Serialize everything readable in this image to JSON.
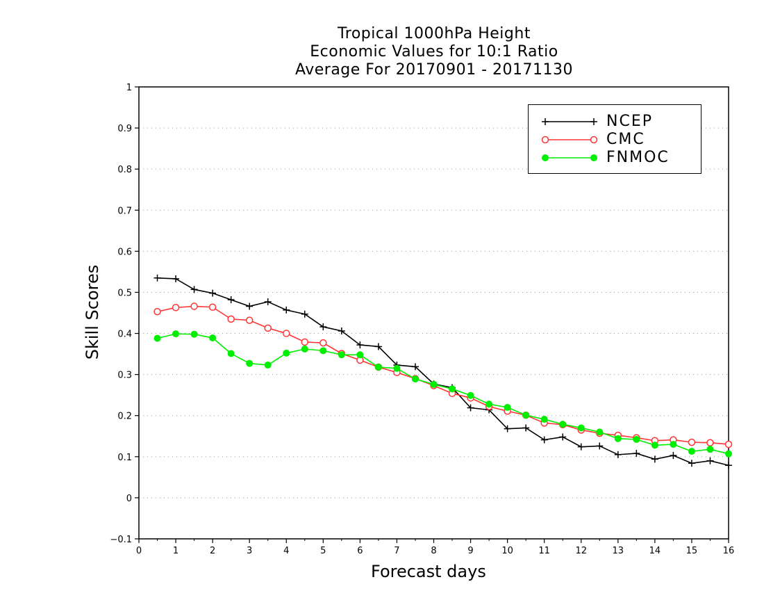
{
  "chart_data": {
    "type": "line",
    "title": [
      "Tropical 1000hPa Height",
      "Economic Values for 10:1 Ratio",
      "Average For 20170901 - 20171130"
    ],
    "xlabel": "Forecast days",
    "ylabel": "Skill Scores",
    "xlim": [
      0,
      16
    ],
    "ylim": [
      -0.1,
      1
    ],
    "xticks": [
      "0",
      "1",
      "2",
      "3",
      "4",
      "5",
      "6",
      "7",
      "8",
      "9",
      "10",
      "11",
      "12",
      "13",
      "14",
      "15",
      "16"
    ],
    "yticks": [
      "-0.1",
      "0",
      "0.1",
      "0.2",
      "0.3",
      "0.4",
      "0.5",
      "0.6",
      "0.7",
      "0.8",
      "0.9",
      "1"
    ],
    "grid": "horizontal dotted",
    "legend_position": "top-right",
    "x": [
      0.5,
      1,
      1.5,
      2,
      2.5,
      3,
      3.5,
      4,
      4.5,
      5,
      5.5,
      6,
      6.5,
      7,
      7.5,
      8,
      8.5,
      9,
      9.5,
      10,
      10.5,
      11,
      11.5,
      12,
      12.5,
      13,
      13.5,
      14,
      14.5,
      15,
      15.5,
      16
    ],
    "series": [
      {
        "name": "NCEP",
        "color": "#000000",
        "marker": "plus",
        "values": [
          0.535,
          0.533,
          0.507,
          0.498,
          0.482,
          0.466,
          0.477,
          0.457,
          0.447,
          0.416,
          0.406,
          0.372,
          0.368,
          0.323,
          0.319,
          0.277,
          0.268,
          0.219,
          0.214,
          0.168,
          0.17,
          0.141,
          0.148,
          0.124,
          0.126,
          0.105,
          0.108,
          0.094,
          0.103,
          0.084,
          0.09,
          0.079
        ]
      },
      {
        "name": "CMC",
        "color": "#ff3333",
        "marker": "open-circle",
        "values": [
          0.453,
          0.463,
          0.466,
          0.464,
          0.435,
          0.432,
          0.413,
          0.4,
          0.379,
          0.377,
          0.351,
          0.335,
          0.318,
          0.305,
          0.29,
          0.273,
          0.254,
          0.243,
          0.222,
          0.211,
          0.201,
          0.182,
          0.178,
          0.165,
          0.157,
          0.152,
          0.146,
          0.139,
          0.141,
          0.135,
          0.134,
          0.13
        ]
      },
      {
        "name": "FNMOC",
        "color": "#00ee00",
        "marker": "filled-circle",
        "values": [
          0.388,
          0.399,
          0.398,
          0.389,
          0.351,
          0.327,
          0.323,
          0.352,
          0.362,
          0.358,
          0.348,
          0.348,
          0.318,
          0.315,
          0.289,
          0.276,
          0.265,
          0.249,
          0.228,
          0.22,
          0.201,
          0.191,
          0.179,
          0.17,
          0.16,
          0.144,
          0.142,
          0.128,
          0.13,
          0.113,
          0.118,
          0.107
        ]
      }
    ]
  }
}
